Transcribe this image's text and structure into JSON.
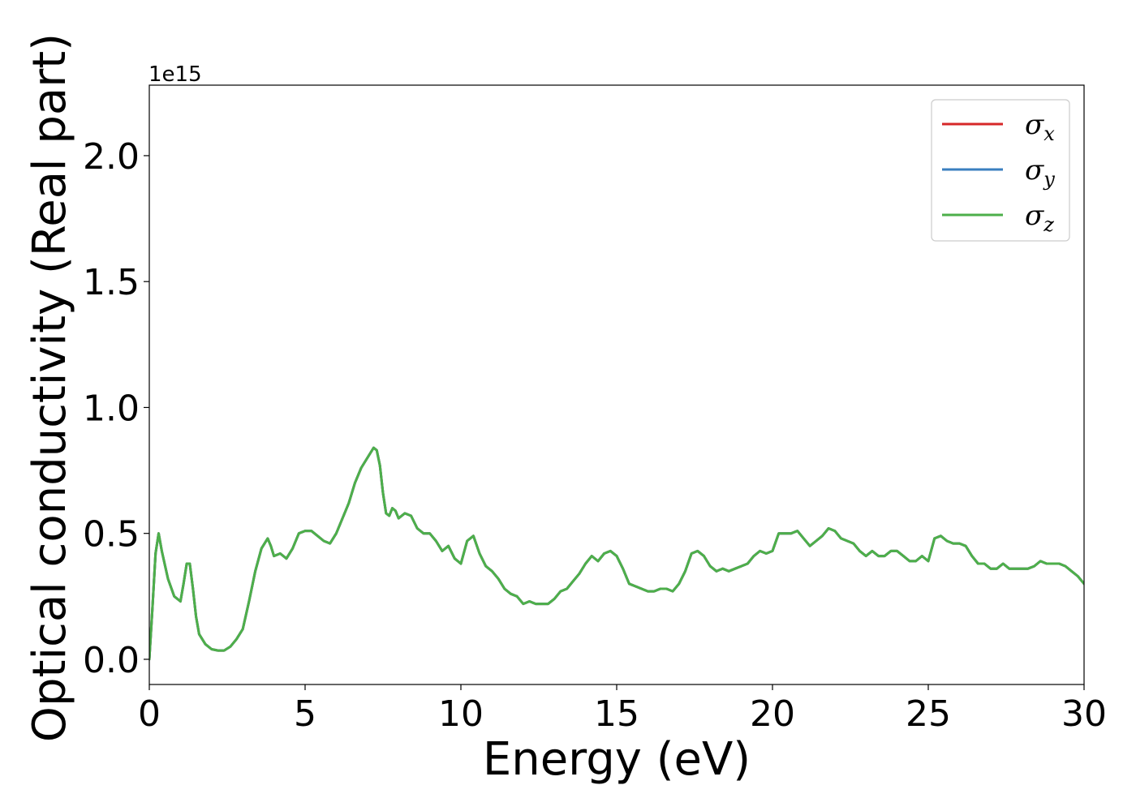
{
  "chart_data": {
    "type": "line",
    "title": "",
    "xlabel": "Energy (eV)",
    "ylabel": "Optical conductivity (Real part)",
    "y_offset_label": "1e15",
    "xlim": [
      0,
      30
    ],
    "ylim": [
      -0.1,
      2.28
    ],
    "x_ticks": [
      0,
      5,
      10,
      15,
      20,
      25,
      30
    ],
    "x_tick_labels": [
      "0",
      "5",
      "10",
      "15",
      "20",
      "25",
      "30"
    ],
    "y_ticks": [
      0.0,
      0.5,
      1.0,
      1.5,
      2.0
    ],
    "y_tick_labels": [
      "0.0",
      "0.5",
      "1.0",
      "1.5",
      "2.0"
    ],
    "grid": false,
    "legend_position": "top-right",
    "x": [
      0,
      0.1,
      0.2,
      0.3,
      0.4,
      0.6,
      0.8,
      1.0,
      1.1,
      1.2,
      1.3,
      1.4,
      1.5,
      1.6,
      1.8,
      2.0,
      2.2,
      2.4,
      2.6,
      2.8,
      3.0,
      3.2,
      3.4,
      3.6,
      3.8,
      3.9,
      4.0,
      4.2,
      4.4,
      4.6,
      4.8,
      5.0,
      5.2,
      5.4,
      5.6,
      5.8,
      6.0,
      6.2,
      6.4,
      6.6,
      6.8,
      7.0,
      7.2,
      7.3,
      7.4,
      7.5,
      7.6,
      7.7,
      7.8,
      7.9,
      8.0,
      8.2,
      8.4,
      8.6,
      8.8,
      9.0,
      9.2,
      9.4,
      9.6,
      9.8,
      10.0,
      10.2,
      10.4,
      10.6,
      10.8,
      11.0,
      11.2,
      11.4,
      11.6,
      11.8,
      12.0,
      12.2,
      12.4,
      12.6,
      12.8,
      13.0,
      13.2,
      13.4,
      13.6,
      13.8,
      14.0,
      14.2,
      14.4,
      14.6,
      14.8,
      15.0,
      15.2,
      15.4,
      15.6,
      15.8,
      16.0,
      16.2,
      16.4,
      16.6,
      16.8,
      17.0,
      17.2,
      17.4,
      17.6,
      17.8,
      18.0,
      18.2,
      18.4,
      18.6,
      18.8,
      19.0,
      19.2,
      19.4,
      19.6,
      19.8,
      20.0,
      20.2,
      20.4,
      20.6,
      20.8,
      21.0,
      21.2,
      21.4,
      21.6,
      21.8,
      22.0,
      22.2,
      22.4,
      22.6,
      22.8,
      23.0,
      23.2,
      23.4,
      23.6,
      23.8,
      24.0,
      24.2,
      24.4,
      24.6,
      24.8,
      25.0,
      25.2,
      25.4,
      25.6,
      25.8,
      26.0,
      26.2,
      26.4,
      26.6,
      26.8,
      27.0,
      27.2,
      27.4,
      27.6,
      27.8,
      28.0,
      28.2,
      28.4,
      28.6,
      28.8,
      29.0,
      29.2,
      29.4,
      29.6,
      29.8,
      30.0
    ],
    "series": [
      {
        "name": "σx",
        "label_main": "σ",
        "label_sub": "x",
        "color": "#d62728",
        "values": [
          0.0,
          0.2,
          0.42,
          0.5,
          0.43,
          0.32,
          0.25,
          0.23,
          0.3,
          0.38,
          0.38,
          0.28,
          0.17,
          0.1,
          0.06,
          0.04,
          0.035,
          0.035,
          0.05,
          0.08,
          0.12,
          0.23,
          0.35,
          0.44,
          0.48,
          0.45,
          0.41,
          0.42,
          0.4,
          0.44,
          0.5,
          0.51,
          0.51,
          0.49,
          0.47,
          0.46,
          0.5,
          0.56,
          0.62,
          0.7,
          0.76,
          0.8,
          0.84,
          0.83,
          0.77,
          0.66,
          0.58,
          0.57,
          0.6,
          0.59,
          0.56,
          0.58,
          0.57,
          0.52,
          0.5,
          0.5,
          0.47,
          0.43,
          0.45,
          0.4,
          0.38,
          0.47,
          0.49,
          0.42,
          0.37,
          0.35,
          0.32,
          0.28,
          0.26,
          0.25,
          0.22,
          0.23,
          0.22,
          0.22,
          0.22,
          0.24,
          0.27,
          0.28,
          0.31,
          0.34,
          0.38,
          0.41,
          0.39,
          0.42,
          0.43,
          0.41,
          0.36,
          0.3,
          0.29,
          0.28,
          0.27,
          0.27,
          0.28,
          0.28,
          0.27,
          0.3,
          0.35,
          0.42,
          0.43,
          0.41,
          0.37,
          0.35,
          0.36,
          0.35,
          0.36,
          0.37,
          0.38,
          0.41,
          0.43,
          0.42,
          0.43,
          0.5,
          0.5,
          0.5,
          0.51,
          0.48,
          0.45,
          0.47,
          0.49,
          0.52,
          0.51,
          0.48,
          0.47,
          0.46,
          0.43,
          0.41,
          0.43,
          0.41,
          0.41,
          0.43,
          0.43,
          0.41,
          0.39,
          0.39,
          0.41,
          0.39,
          0.48,
          0.49,
          0.47,
          0.46,
          0.46,
          0.45,
          0.41,
          0.38,
          0.38,
          0.36,
          0.36,
          0.38,
          0.36,
          0.36,
          0.36,
          0.36,
          0.37,
          0.39,
          0.38,
          0.38,
          0.38,
          0.37,
          0.35,
          0.33,
          0.3
        ]
      },
      {
        "name": "σy",
        "label_main": "σ",
        "label_sub": "y",
        "color": "#3a7fbf",
        "values": [
          0.0,
          0.2,
          0.42,
          0.5,
          0.43,
          0.32,
          0.25,
          0.23,
          0.3,
          0.38,
          0.38,
          0.28,
          0.17,
          0.1,
          0.06,
          0.04,
          0.035,
          0.035,
          0.05,
          0.08,
          0.12,
          0.23,
          0.35,
          0.44,
          0.48,
          0.45,
          0.41,
          0.42,
          0.4,
          0.44,
          0.5,
          0.51,
          0.51,
          0.49,
          0.47,
          0.46,
          0.5,
          0.56,
          0.62,
          0.7,
          0.76,
          0.8,
          0.84,
          0.83,
          0.77,
          0.66,
          0.58,
          0.57,
          0.6,
          0.59,
          0.56,
          0.58,
          0.57,
          0.52,
          0.5,
          0.5,
          0.47,
          0.43,
          0.45,
          0.4,
          0.38,
          0.47,
          0.49,
          0.42,
          0.37,
          0.35,
          0.32,
          0.28,
          0.26,
          0.25,
          0.22,
          0.23,
          0.22,
          0.22,
          0.22,
          0.24,
          0.27,
          0.28,
          0.31,
          0.34,
          0.38,
          0.41,
          0.39,
          0.42,
          0.43,
          0.41,
          0.36,
          0.3,
          0.29,
          0.28,
          0.27,
          0.27,
          0.28,
          0.28,
          0.27,
          0.3,
          0.35,
          0.42,
          0.43,
          0.41,
          0.37,
          0.35,
          0.36,
          0.35,
          0.36,
          0.37,
          0.38,
          0.41,
          0.43,
          0.42,
          0.43,
          0.5,
          0.5,
          0.5,
          0.51,
          0.48,
          0.45,
          0.47,
          0.49,
          0.52,
          0.51,
          0.48,
          0.47,
          0.46,
          0.43,
          0.41,
          0.43,
          0.41,
          0.41,
          0.43,
          0.43,
          0.41,
          0.39,
          0.39,
          0.41,
          0.39,
          0.48,
          0.49,
          0.47,
          0.46,
          0.46,
          0.45,
          0.41,
          0.38,
          0.38,
          0.36,
          0.36,
          0.38,
          0.36,
          0.36,
          0.36,
          0.36,
          0.37,
          0.39,
          0.38,
          0.38,
          0.38,
          0.37,
          0.35,
          0.33,
          0.3
        ]
      },
      {
        "name": "σz",
        "label_main": "σ",
        "label_sub": "z",
        "color": "#4daf4a",
        "values": [
          0.0,
          0.2,
          0.42,
          0.5,
          0.43,
          0.32,
          0.25,
          0.23,
          0.3,
          0.38,
          0.38,
          0.28,
          0.17,
          0.1,
          0.06,
          0.04,
          0.035,
          0.035,
          0.05,
          0.08,
          0.12,
          0.23,
          0.35,
          0.44,
          0.48,
          0.45,
          0.41,
          0.42,
          0.4,
          0.44,
          0.5,
          0.51,
          0.51,
          0.49,
          0.47,
          0.46,
          0.5,
          0.56,
          0.62,
          0.7,
          0.76,
          0.8,
          0.84,
          0.83,
          0.77,
          0.66,
          0.58,
          0.57,
          0.6,
          0.59,
          0.56,
          0.58,
          0.57,
          0.52,
          0.5,
          0.5,
          0.47,
          0.43,
          0.45,
          0.4,
          0.38,
          0.47,
          0.49,
          0.42,
          0.37,
          0.35,
          0.32,
          0.28,
          0.26,
          0.25,
          0.22,
          0.23,
          0.22,
          0.22,
          0.22,
          0.24,
          0.27,
          0.28,
          0.31,
          0.34,
          0.38,
          0.41,
          0.39,
          0.42,
          0.43,
          0.41,
          0.36,
          0.3,
          0.29,
          0.28,
          0.27,
          0.27,
          0.28,
          0.28,
          0.27,
          0.3,
          0.35,
          0.42,
          0.43,
          0.41,
          0.37,
          0.35,
          0.36,
          0.35,
          0.36,
          0.37,
          0.38,
          0.41,
          0.43,
          0.42,
          0.43,
          0.5,
          0.5,
          0.5,
          0.51,
          0.48,
          0.45,
          0.47,
          0.49,
          0.52,
          0.51,
          0.48,
          0.47,
          0.46,
          0.43,
          0.41,
          0.43,
          0.41,
          0.41,
          0.43,
          0.43,
          0.41,
          0.39,
          0.39,
          0.41,
          0.39,
          0.48,
          0.49,
          0.47,
          0.46,
          0.46,
          0.45,
          0.41,
          0.38,
          0.38,
          0.36,
          0.36,
          0.38,
          0.36,
          0.36,
          0.36,
          0.36,
          0.37,
          0.39,
          0.38,
          0.38,
          0.38,
          0.37,
          0.35,
          0.33,
          0.3
        ]
      }
    ]
  }
}
